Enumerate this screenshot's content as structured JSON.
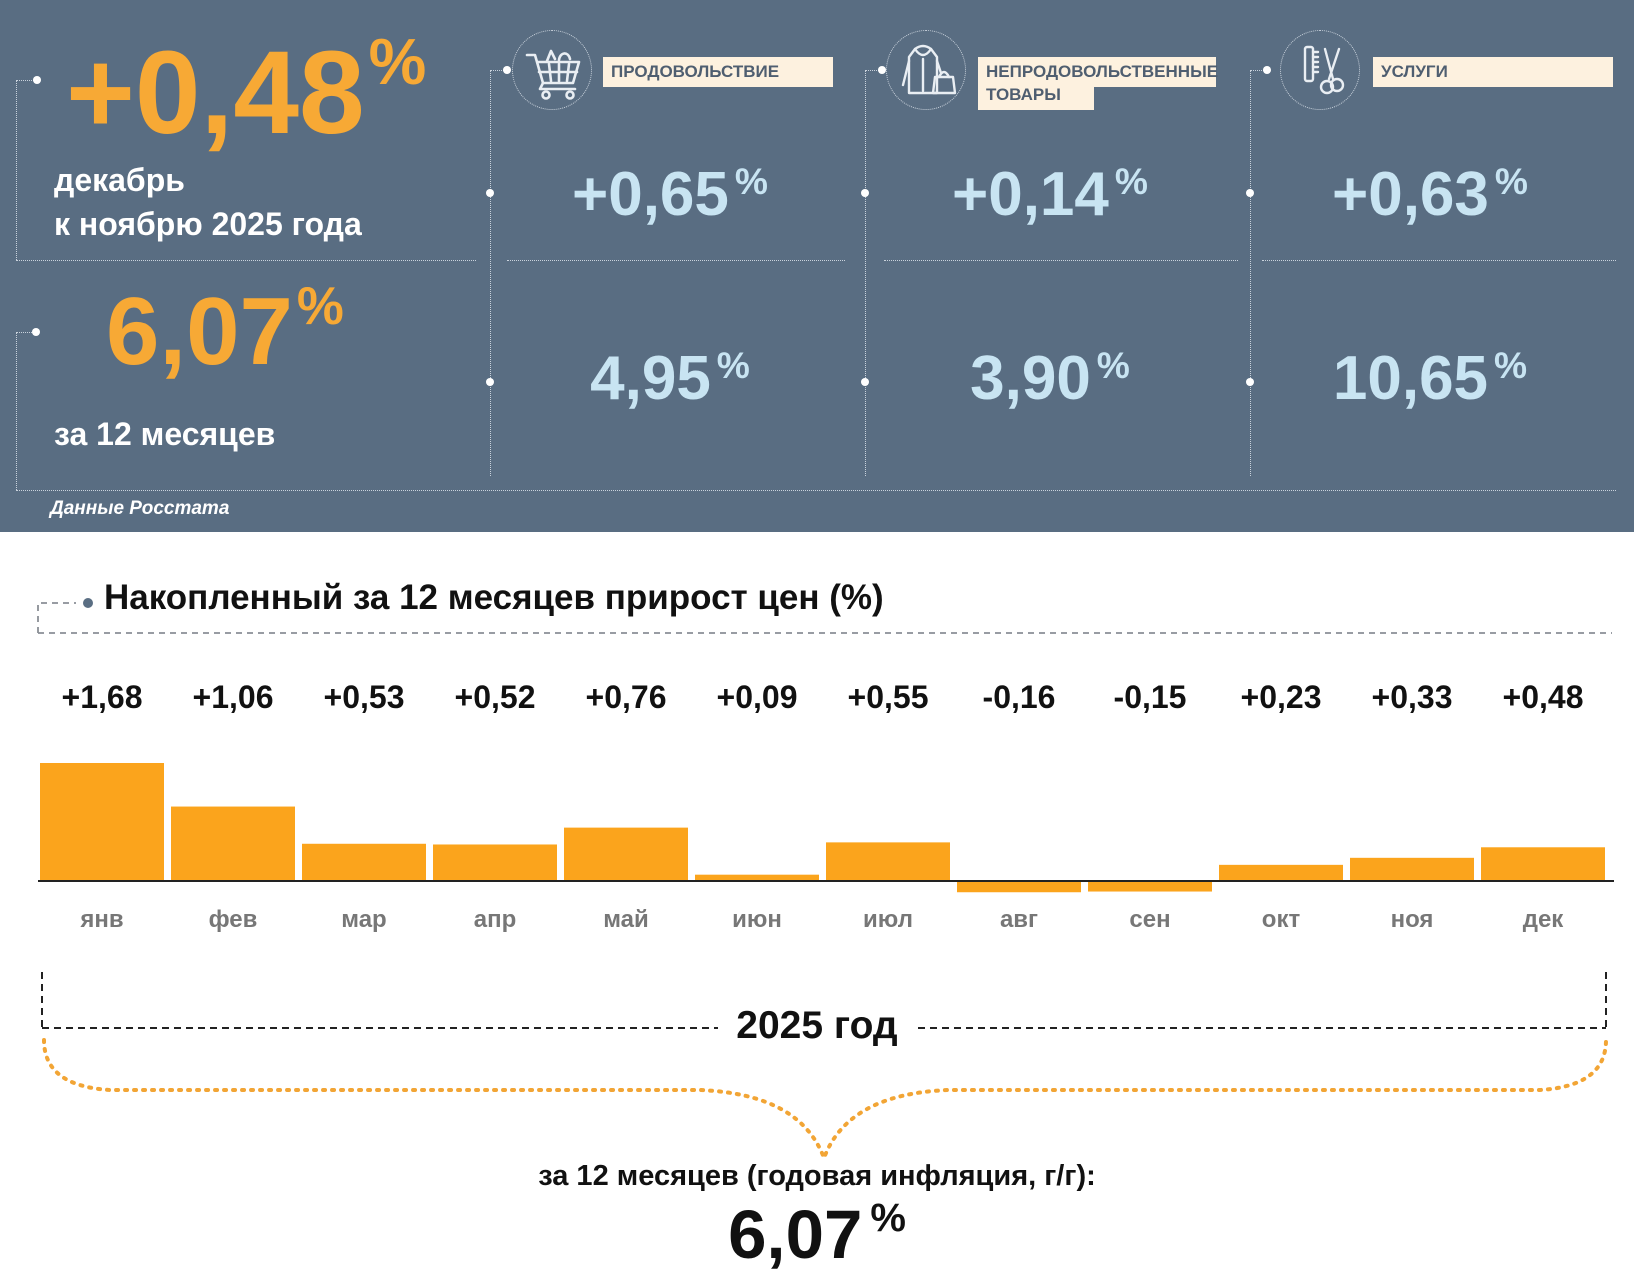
{
  "header": {
    "monthly_value": "+0,48",
    "monthly_unit": "%",
    "monthly_label_line1": "декабрь",
    "monthly_label_line2": "к ноябрю 2025 года",
    "annual_value": "6,07",
    "annual_unit": "%",
    "annual_label": "за 12 месяцев",
    "source": "Данные Росстата"
  },
  "categories": [
    {
      "label": "ПРОДОВОЛЬСТВИЕ",
      "icon": "shopping-cart-icon",
      "monthly": "+0,65",
      "annual": "4,95",
      "unit": "%"
    },
    {
      "label_line1": "НЕПРОДОВОЛЬСТВЕННЫЕ",
      "label_line2": "ТОВАРЫ",
      "icon": "clothing-bag-icon",
      "monthly": "+0,14",
      "annual": "3,90",
      "unit": "%"
    },
    {
      "label": "УСЛУГИ",
      "icon": "comb-scissors-icon",
      "monthly": "+0,63",
      "annual": "10,65",
      "unit": "%"
    }
  ],
  "colors": {
    "panel_bg": "#596d82",
    "accent_orange": "#f7a935",
    "bar_orange": "#fba41c",
    "value_blue": "#c8e4f2",
    "label_bg": "#fdf1df"
  },
  "chart_data": {
    "type": "bar",
    "title": "Накопленный за 12 месяцев прирост цен (%)",
    "categories": [
      "янв",
      "фев",
      "мар",
      "апр",
      "май",
      "июн",
      "июл",
      "авг",
      "сен",
      "окт",
      "ноя",
      "дек"
    ],
    "values": [
      1.68,
      1.06,
      0.53,
      0.52,
      0.76,
      0.09,
      0.55,
      -0.16,
      -0.15,
      0.23,
      0.33,
      0.48
    ],
    "value_labels": [
      "+1,68",
      "+1,06",
      "+0,53",
      "+0,52",
      "+0,76",
      "+0,09",
      "+0,55",
      "-0,16",
      "-0,15",
      "+0,23",
      "+0,33",
      "+0,48"
    ],
    "ylim": [
      -0.16,
      1.68
    ],
    "grid": false,
    "legend": "none"
  },
  "summary": {
    "period_label": "2025 год",
    "annual_label": "за 12 месяцев (годовая инфляция, г/г):",
    "annual_value": "6,07",
    "annual_unit": "%"
  }
}
